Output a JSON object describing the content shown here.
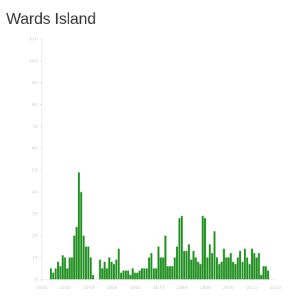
{
  "title": "Wards Island",
  "chart_data": {
    "type": "bar",
    "title": "Wards Island",
    "xlabel": "",
    "ylabel": "",
    "xlim": [
      1920,
      2020
    ],
    "ylim": [
      0,
      110
    ],
    "x_ticks": [
      "1920",
      "1930",
      "1940",
      "1950",
      "1960",
      "1970",
      "1980",
      "1990",
      "2000",
      "2010",
      "2020"
    ],
    "y_ticks": [
      "0",
      "10",
      "20",
      "30",
      "40",
      "50",
      "60",
      "70",
      "80",
      "90",
      "100",
      "110"
    ],
    "bar_color": "#1e8e1e",
    "grid": false,
    "x": [
      1924,
      1925,
      1926,
      1927,
      1928,
      1929,
      1930,
      1931,
      1932,
      1933,
      1934,
      1935,
      1936,
      1937,
      1938,
      1939,
      1940,
      1941,
      1942,
      1943,
      1944,
      1945,
      1946,
      1947,
      1948,
      1949,
      1950,
      1951,
      1952,
      1953,
      1954,
      1955,
      1956,
      1957,
      1958,
      1959,
      1960,
      1961,
      1962,
      1963,
      1964,
      1965,
      1966,
      1967,
      1968,
      1969,
      1970,
      1971,
      1972,
      1973,
      1974,
      1975,
      1976,
      1977,
      1978,
      1979,
      1980,
      1981,
      1982,
      1983,
      1984,
      1985,
      1986,
      1987,
      1988,
      1989,
      1990,
      1991,
      1992,
      1993,
      1994,
      1995,
      1996,
      1997,
      1998,
      1999,
      2000,
      2001,
      2002,
      2003,
      2004,
      2005,
      2006,
      2007,
      2008,
      2009,
      2010,
      2011,
      2012,
      2013,
      2014,
      2015,
      2016,
      2017
    ],
    "values": [
      5,
      3,
      5,
      8,
      6,
      11,
      10,
      5,
      10,
      10,
      20,
      24,
      49,
      40,
      20,
      15,
      15,
      10,
      2,
      0,
      0,
      9,
      5,
      8,
      5,
      10,
      8,
      7,
      9,
      14,
      3,
      4,
      4,
      4,
      2,
      5,
      3,
      3,
      4,
      5,
      5,
      5,
      10,
      12,
      5,
      5,
      15,
      10,
      10,
      20,
      6,
      6,
      6,
      10,
      15,
      28,
      29,
      13,
      13,
      16,
      9,
      13,
      10,
      8,
      7,
      29,
      28,
      10,
      16,
      12,
      22,
      10,
      7,
      8,
      14,
      10,
      10,
      12,
      8,
      7,
      10,
      13,
      8,
      14,
      10,
      7,
      14,
      12,
      10,
      12,
      2,
      6,
      6,
      4
    ]
  }
}
